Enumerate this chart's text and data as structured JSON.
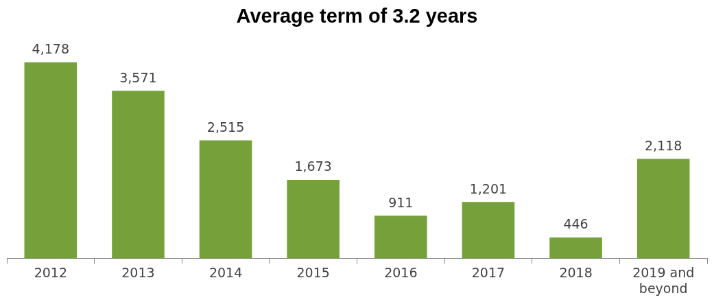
{
  "chart_data": {
    "type": "bar",
    "title": "Average term of 3.2 years",
    "categories": [
      "2012",
      "2013",
      "2014",
      "2015",
      "2016",
      "2017",
      "2018",
      "2019 and beyond"
    ],
    "values": [
      4178,
      3571,
      2515,
      1673,
      911,
      1201,
      446,
      2118
    ],
    "value_labels": [
      "4,178",
      "3,571",
      "2,515",
      "1,673",
      "911",
      "1,201",
      "446",
      "2,118"
    ],
    "color": "#76a03a",
    "grid": false,
    "legend": false
  }
}
